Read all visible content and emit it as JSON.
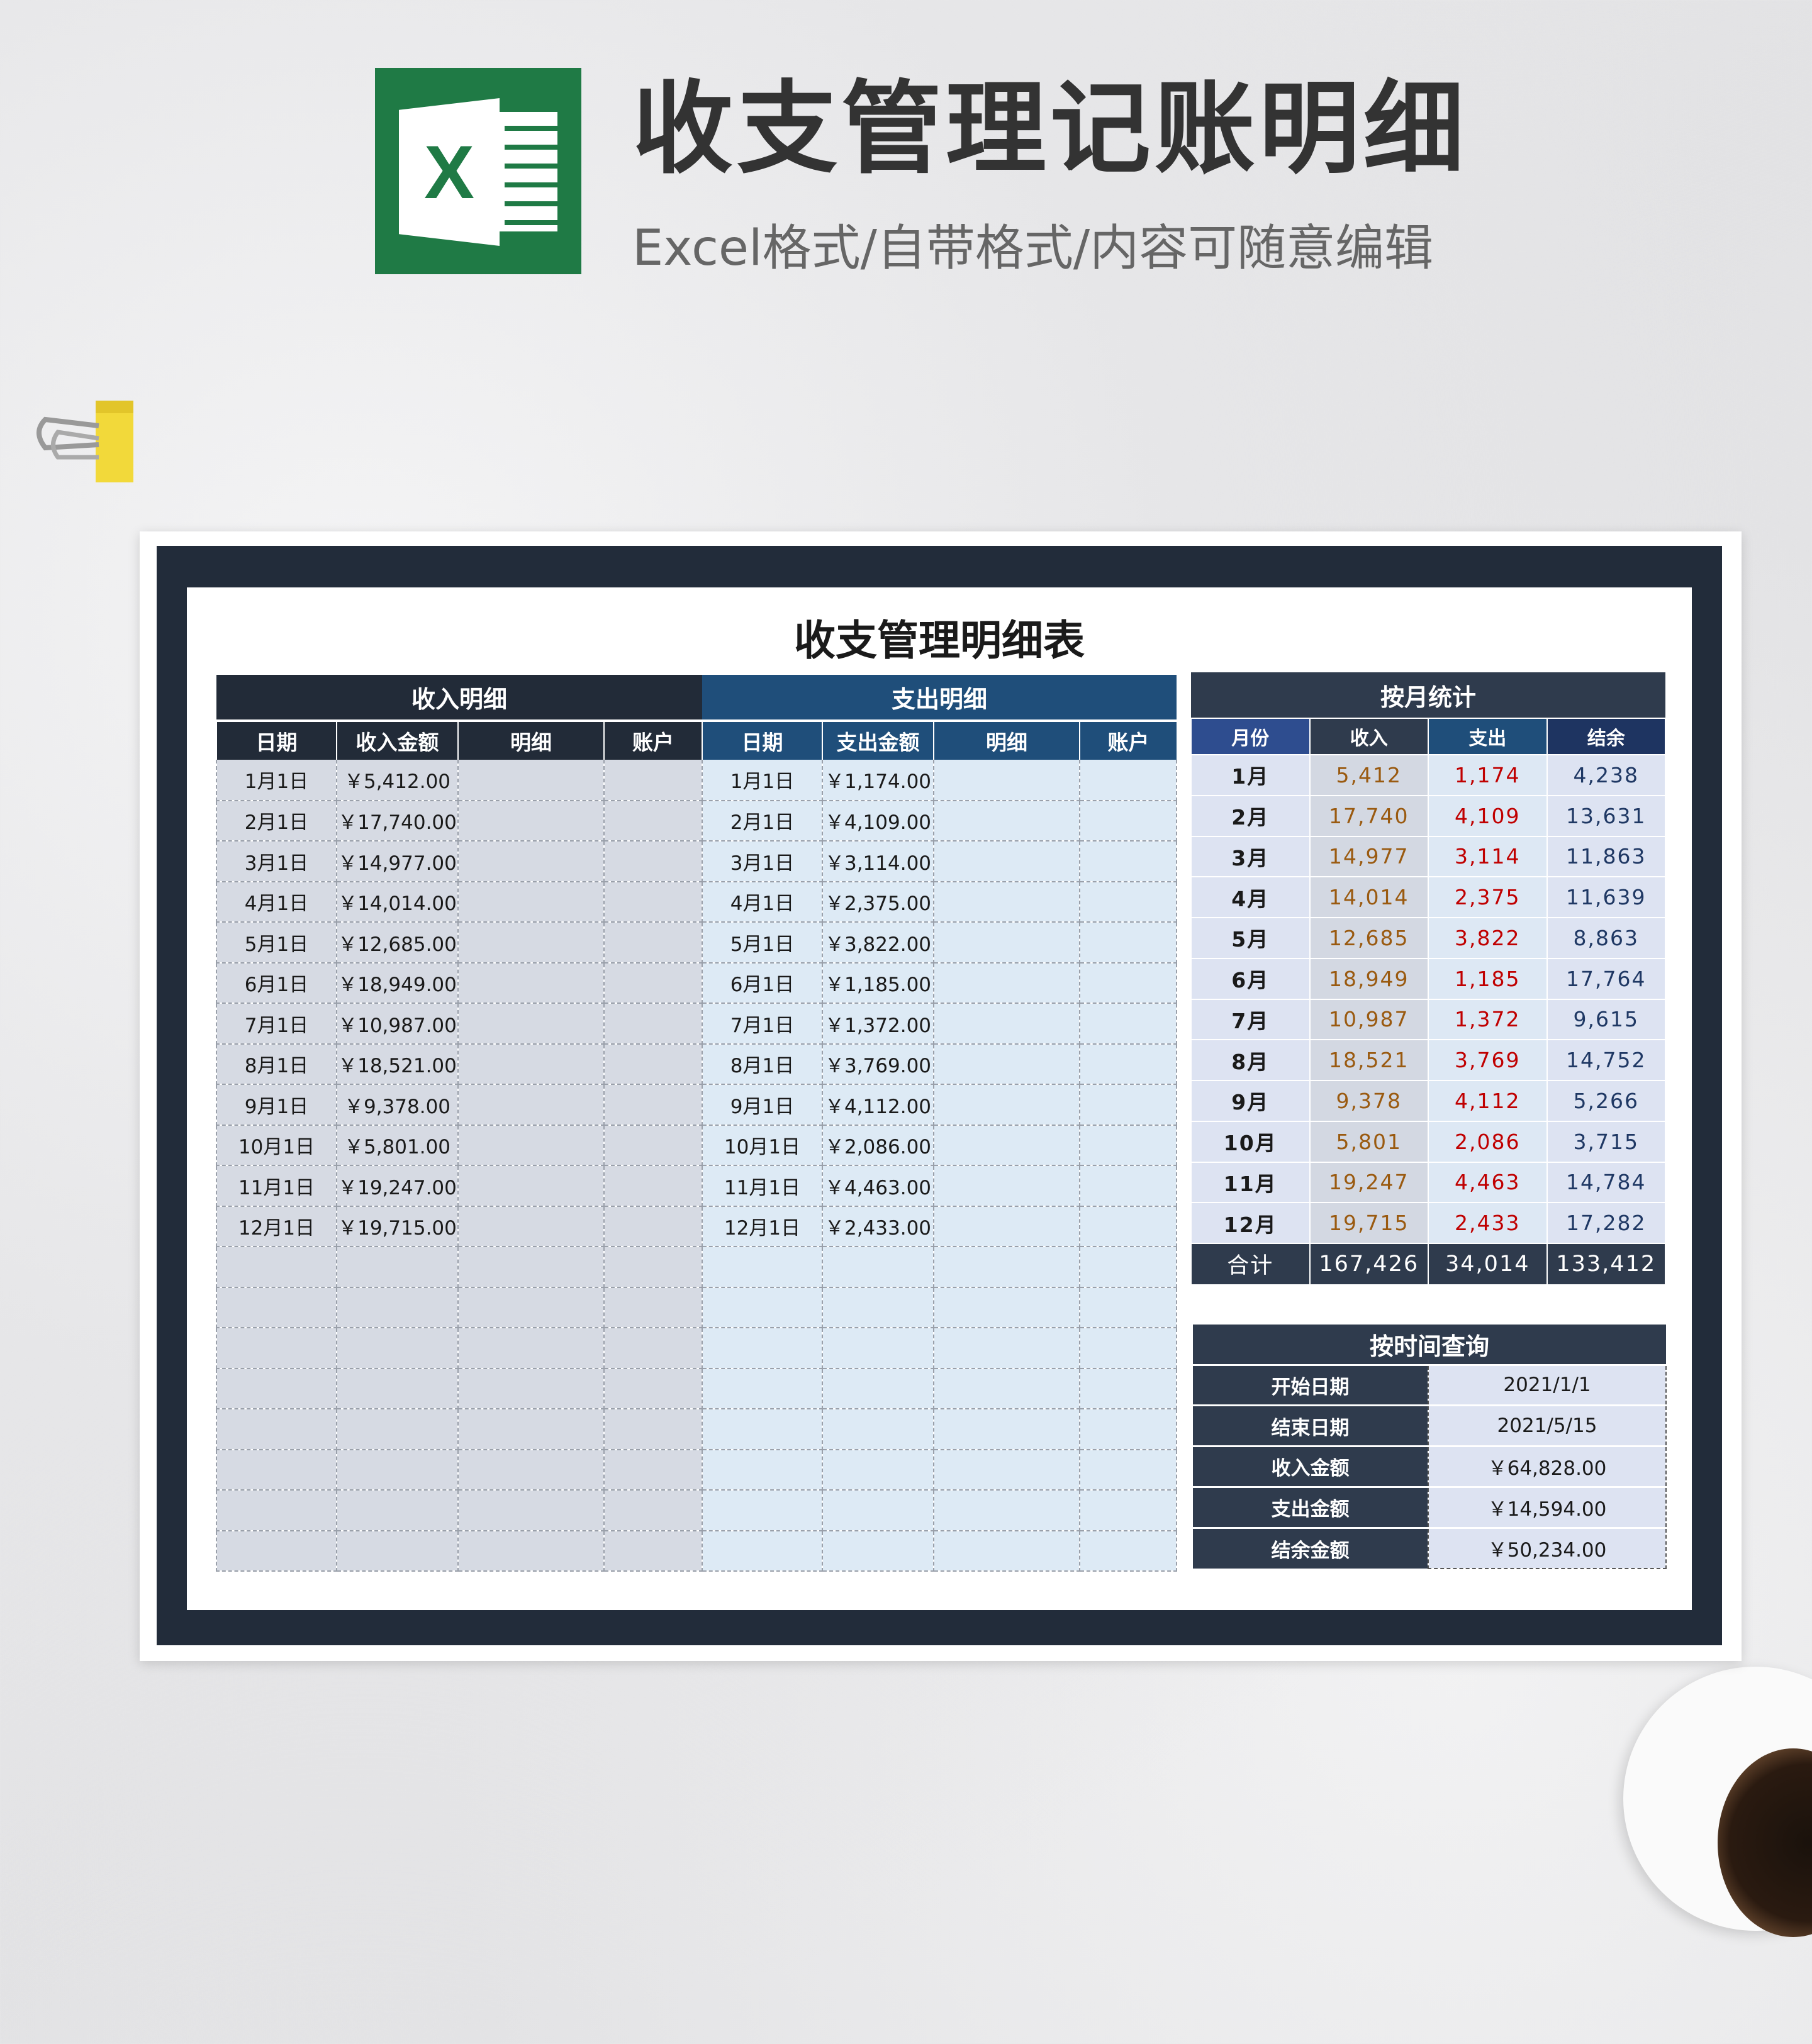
{
  "header": {
    "title": "收支管理记账明细",
    "subtitle": "Excel格式/自带格式/内容可随意编辑",
    "logo_letter": "X"
  },
  "sheet": {
    "title": "收支管理明细表",
    "income": {
      "section": "收入明细",
      "columns": [
        "日期",
        "收入金额",
        "明细",
        "账户"
      ],
      "rows": [
        [
          "1月1日",
          "￥5,412.00"
        ],
        [
          "2月1日",
          "￥17,740.00"
        ],
        [
          "3月1日",
          "￥14,977.00"
        ],
        [
          "4月1日",
          "￥14,014.00"
        ],
        [
          "5月1日",
          "￥12,685.00"
        ],
        [
          "6月1日",
          "￥18,949.00"
        ],
        [
          "7月1日",
          "￥10,987.00"
        ],
        [
          "8月1日",
          "￥18,521.00"
        ],
        [
          "9月1日",
          "￥9,378.00"
        ],
        [
          "10月1日",
          "￥5,801.00"
        ],
        [
          "11月1日",
          "￥19,247.00"
        ],
        [
          "12月1日",
          "￥19,715.00"
        ]
      ]
    },
    "expense": {
      "section": "支出明细",
      "columns": [
        "日期",
        "支出金额",
        "明细",
        "账户"
      ],
      "rows": [
        [
          "1月1日",
          "￥1,174.00"
        ],
        [
          "2月1日",
          "￥4,109.00"
        ],
        [
          "3月1日",
          "￥3,114.00"
        ],
        [
          "4月1日",
          "￥2,375.00"
        ],
        [
          "5月1日",
          "￥3,822.00"
        ],
        [
          "6月1日",
          "￥1,185.00"
        ],
        [
          "7月1日",
          "￥1,372.00"
        ],
        [
          "8月1日",
          "￥3,769.00"
        ],
        [
          "9月1日",
          "￥4,112.00"
        ],
        [
          "10月1日",
          "￥2,086.00"
        ],
        [
          "11月1日",
          "￥4,463.00"
        ],
        [
          "12月1日",
          "￥2,433.00"
        ]
      ]
    },
    "monthly": {
      "section": "按月统计",
      "columns": [
        "月份",
        "收入",
        "支出",
        "结余"
      ],
      "header_colors": [
        "#2e4d8f",
        "#2f3b4d",
        "#1f4e7a",
        "#1e3461"
      ],
      "rows": [
        [
          "1月",
          "5,412",
          "1,174",
          "4,238"
        ],
        [
          "2月",
          "17,740",
          "4,109",
          "13,631"
        ],
        [
          "3月",
          "14,977",
          "3,114",
          "11,863"
        ],
        [
          "4月",
          "14,014",
          "2,375",
          "11,639"
        ],
        [
          "5月",
          "12,685",
          "3,822",
          "8,863"
        ],
        [
          "6月",
          "18,949",
          "1,185",
          "17,764"
        ],
        [
          "7月",
          "10,987",
          "1,372",
          "9,615"
        ],
        [
          "8月",
          "18,521",
          "3,769",
          "14,752"
        ],
        [
          "9月",
          "9,378",
          "4,112",
          "5,266"
        ],
        [
          "10月",
          "5,801",
          "2,086",
          "3,715"
        ],
        [
          "11月",
          "19,247",
          "4,463",
          "14,784"
        ],
        [
          "12月",
          "19,715",
          "2,433",
          "17,282"
        ]
      ],
      "total": [
        "合计",
        "167,426",
        "34,014",
        "133,412"
      ]
    },
    "query": {
      "section": "按时间查询",
      "rows": [
        [
          "开始日期",
          "2021/1/1"
        ],
        [
          "结束日期",
          "2021/5/15"
        ],
        [
          "收入金额",
          "￥64,828.00"
        ],
        [
          "支出金额",
          "￥14,594.00"
        ],
        [
          "结余金额",
          "￥50,234.00"
        ]
      ]
    }
  },
  "colors": {
    "frame": "#222c3a",
    "income_value": "#9a5a10",
    "expense_value": "#c00000",
    "balance_value": "#1f3864"
  }
}
